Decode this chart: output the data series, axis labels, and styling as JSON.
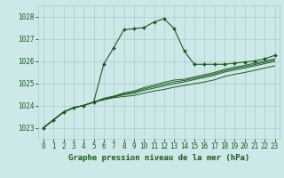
{
  "bg_color": "#cce8e8",
  "grid_color": "#aacccc",
  "line_color": "#1a5c1a",
  "x_values": [
    0,
    1,
    2,
    3,
    4,
    5,
    6,
    7,
    8,
    9,
    10,
    11,
    12,
    13,
    14,
    15,
    16,
    17,
    18,
    19,
    20,
    21,
    22,
    23
  ],
  "series_main": [
    1023.0,
    1023.35,
    1023.7,
    1023.9,
    1024.0,
    1024.15,
    1025.85,
    1026.6,
    1027.4,
    1027.45,
    1027.5,
    1027.75,
    1027.9,
    1027.45,
    1026.45,
    1025.85,
    1025.85,
    1025.85,
    1025.85,
    1025.9,
    1025.95,
    1026.0,
    1026.1,
    1026.25
  ],
  "series_extra": [
    [
      1023.0,
      1023.35,
      1023.7,
      1023.9,
      1024.0,
      1024.15,
      1024.25,
      1024.35,
      1024.4,
      1024.45,
      1024.55,
      1024.65,
      1024.72,
      1024.82,
      1024.9,
      1024.98,
      1025.05,
      1025.15,
      1025.3,
      1025.4,
      1025.48,
      1025.58,
      1025.68,
      1025.78
    ],
    [
      1023.0,
      1023.35,
      1023.7,
      1023.9,
      1024.0,
      1024.15,
      1024.28,
      1024.38,
      1024.48,
      1024.55,
      1024.68,
      1024.78,
      1024.88,
      1024.98,
      1025.06,
      1025.16,
      1025.26,
      1025.36,
      1025.5,
      1025.6,
      1025.68,
      1025.78,
      1025.88,
      1025.98
    ],
    [
      1023.0,
      1023.35,
      1023.7,
      1023.9,
      1024.0,
      1024.15,
      1024.3,
      1024.4,
      1024.52,
      1024.6,
      1024.74,
      1024.85,
      1024.96,
      1025.06,
      1025.12,
      1025.22,
      1025.32,
      1025.42,
      1025.56,
      1025.66,
      1025.74,
      1025.84,
      1025.94,
      1026.04
    ],
    [
      1023.0,
      1023.35,
      1023.7,
      1023.9,
      1024.0,
      1024.15,
      1024.32,
      1024.42,
      1024.56,
      1024.65,
      1024.8,
      1024.92,
      1025.04,
      1025.14,
      1025.18,
      1025.28,
      1025.38,
      1025.48,
      1025.62,
      1025.72,
      1025.8,
      1025.9,
      1026.0,
      1026.1
    ]
  ],
  "ylim": [
    1022.5,
    1028.5
  ],
  "yticks": [
    1023,
    1024,
    1025,
    1026,
    1027,
    1028
  ],
  "xticks": [
    0,
    1,
    2,
    3,
    4,
    5,
    6,
    7,
    8,
    9,
    10,
    11,
    12,
    13,
    14,
    15,
    16,
    17,
    18,
    19,
    20,
    21,
    22,
    23
  ],
  "xlabel": "Graphe pression niveau de la mer (hPa)",
  "tick_fontsize": 5.5,
  "xlabel_fontsize": 6.5,
  "marker": "D",
  "marker_size": 2.0,
  "linewidth_main": 0.8,
  "linewidth_extra": 0.7
}
